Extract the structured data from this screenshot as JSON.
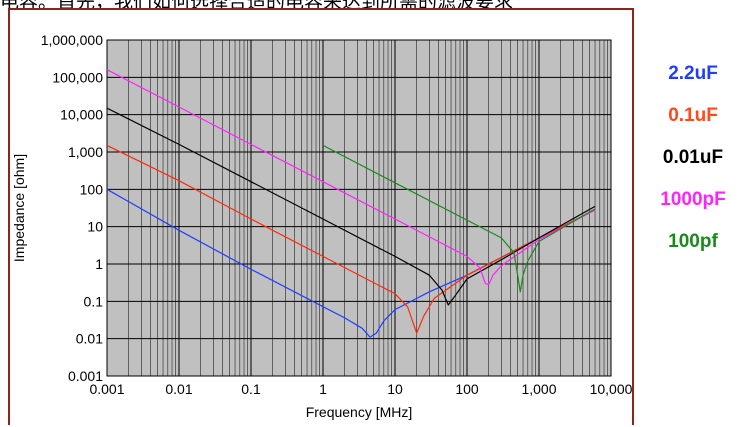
{
  "header_text": "电容。首先，我们如何选择合适的电容来达到所需的滤波要求",
  "chart_data": {
    "type": "line",
    "title": "",
    "xlabel": "Frequency [MHz]",
    "ylabel": "Impedance [ohm]",
    "x_scale": "log",
    "y_scale": "log",
    "xlim": [
      0.001,
      10000
    ],
    "ylim": [
      0.001,
      1000000
    ],
    "x_ticks": [
      "0.001",
      "0.01",
      "0.1",
      "1",
      "10",
      "100",
      "1,000",
      "10,000"
    ],
    "y_ticks": [
      "1,000,000",
      "100,000",
      "10,000",
      "1,000",
      "100",
      "10",
      "1",
      "0.1",
      "0.01",
      "0.001"
    ],
    "grid": true,
    "legend_position": "right",
    "series": [
      {
        "name": "2.2uF",
        "color": "#1f3fff",
        "x": [
          0.001,
          0.01,
          0.1,
          1,
          2,
          3.5,
          4.5,
          5.5,
          7,
          10,
          30,
          100,
          1000,
          6000
        ],
        "y": [
          100,
          8,
          0.72,
          0.072,
          0.036,
          0.019,
          0.011,
          0.014,
          0.03,
          0.06,
          0.18,
          0.5,
          5,
          28
        ]
      },
      {
        "name": "0.1uF",
        "color": "#ff2a0a",
        "x": [
          0.001,
          0.01,
          0.1,
          1,
          5,
          10,
          15,
          20,
          25,
          35,
          60,
          100,
          1000,
          6000
        ],
        "y": [
          1500,
          170,
          16,
          1.6,
          0.32,
          0.16,
          0.07,
          0.014,
          0.04,
          0.12,
          0.25,
          0.5,
          5,
          28
        ]
      },
      {
        "name": "0.01uF",
        "color": "#000000",
        "x": [
          0.001,
          0.01,
          0.1,
          1,
          10,
          30,
          45,
          55,
          70,
          100,
          300,
          1000,
          6000
        ],
        "y": [
          15000,
          1600,
          160,
          16,
          1.6,
          0.5,
          0.2,
          0.08,
          0.15,
          0.4,
          1.3,
          5,
          35
        ]
      },
      {
        "name": "1000pF",
        "color": "#ff22ff",
        "x": [
          0.001,
          0.01,
          0.1,
          1,
          10,
          100,
          150,
          180,
          200,
          230,
          300,
          1000,
          6000
        ],
        "y": [
          160000,
          16000,
          1600,
          160,
          16,
          1.6,
          0.8,
          0.3,
          0.28,
          0.5,
          0.9,
          4.5,
          28
        ]
      },
      {
        "name": "100pf",
        "color": "#1a8a1a",
        "x": [
          1,
          10,
          100,
          300,
          450,
          550,
          600,
          700,
          1000,
          6000
        ],
        "y": [
          1500,
          150,
          15,
          5,
          2,
          0.18,
          0.5,
          1.2,
          4,
          30
        ]
      }
    ]
  }
}
